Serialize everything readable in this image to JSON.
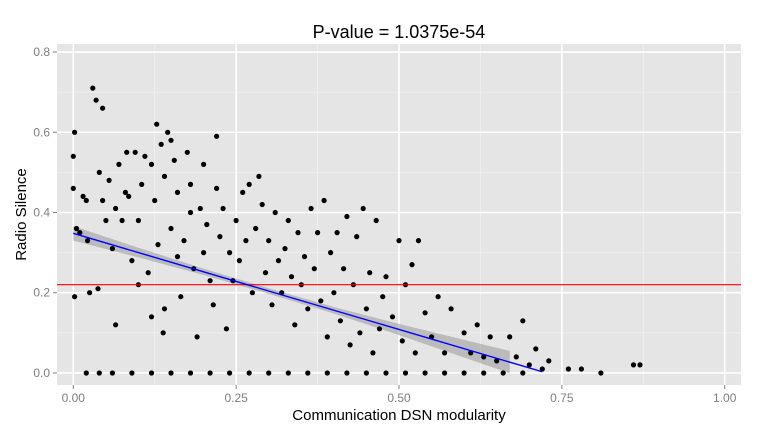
{
  "chart_data": {
    "type": "scatter",
    "title": "P-value = 1.0375e-54",
    "xlabel": "Communication DSN modularity",
    "ylabel": "Radio Silence",
    "xlim": [
      -0.025,
      1.025
    ],
    "ylim": [
      -0.03,
      0.82
    ],
    "x_ticks": [
      0.0,
      0.25,
      0.5,
      0.75,
      1.0
    ],
    "x_tick_labels": [
      "0.00",
      "0.25",
      "0.50",
      "0.75",
      "1.00"
    ],
    "y_ticks": [
      0.0,
      0.2,
      0.4,
      0.6,
      0.8
    ],
    "y_tick_labels": [
      "0.0",
      "0.2",
      "0.4",
      "0.6",
      "0.8"
    ],
    "grid": true,
    "colors": {
      "panel_background": "#e5e5e5",
      "grid_major": "#ffffff",
      "grid_minor": "#f2f2f2",
      "points": "#000000",
      "regression_line": "#0000ff",
      "confidence_band": "#999999",
      "reference_line": "#ff0000"
    },
    "reference_hline": {
      "y": 0.22
    },
    "regression": {
      "x": [
        0.0,
        0.72
      ],
      "y": [
        0.348,
        0.003
      ],
      "band_x": [
        0.0,
        0.1,
        0.2,
        0.3,
        0.4,
        0.5,
        0.6,
        0.67
      ],
      "band_half_width": [
        0.018,
        0.012,
        0.008,
        0.007,
        0.008,
        0.014,
        0.022,
        0.028
      ]
    },
    "series": [
      {
        "points": [
          [
            0.0,
            0.54
          ],
          [
            0.0,
            0.46
          ],
          [
            0.002,
            0.6
          ],
          [
            0.002,
            0.19
          ],
          [
            0.005,
            0.36
          ],
          [
            0.01,
            0.35
          ],
          [
            0.015,
            0.44
          ],
          [
            0.02,
            0.43
          ],
          [
            0.022,
            0.33
          ],
          [
            0.025,
            0.2
          ],
          [
            0.03,
            0.71
          ],
          [
            0.035,
            0.68
          ],
          [
            0.038,
            0.21
          ],
          [
            0.04,
            0.5
          ],
          [
            0.045,
            0.66
          ],
          [
            0.045,
            0.43
          ],
          [
            0.05,
            0.38
          ],
          [
            0.055,
            0.48
          ],
          [
            0.06,
            0.31
          ],
          [
            0.065,
            0.12
          ],
          [
            0.065,
            0.41
          ],
          [
            0.07,
            0.52
          ],
          [
            0.075,
            0.38
          ],
          [
            0.08,
            0.45
          ],
          [
            0.082,
            0.55
          ],
          [
            0.085,
            0.44
          ],
          [
            0.09,
            0.28
          ],
          [
            0.095,
            0.55
          ],
          [
            0.1,
            0.38
          ],
          [
            0.1,
            0.22
          ],
          [
            0.105,
            0.47
          ],
          [
            0.11,
            0.54
          ],
          [
            0.115,
            0.25
          ],
          [
            0.12,
            0.52
          ],
          [
            0.12,
            0.14
          ],
          [
            0.125,
            0.43
          ],
          [
            0.128,
            0.62
          ],
          [
            0.13,
            0.32
          ],
          [
            0.135,
            0.57
          ],
          [
            0.138,
            0.1
          ],
          [
            0.14,
            0.49
          ],
          [
            0.14,
            0.16
          ],
          [
            0.145,
            0.6
          ],
          [
            0.15,
            0.58
          ],
          [
            0.15,
            0.36
          ],
          [
            0.155,
            0.53
          ],
          [
            0.16,
            0.29
          ],
          [
            0.16,
            0.45
          ],
          [
            0.165,
            0.19
          ],
          [
            0.17,
            0.33
          ],
          [
            0.175,
            0.55
          ],
          [
            0.18,
            0.4
          ],
          [
            0.18,
            0.47
          ],
          [
            0.185,
            0.26
          ],
          [
            0.19,
            0.09
          ],
          [
            0.195,
            0.41
          ],
          [
            0.2,
            0.52
          ],
          [
            0.2,
            0.3
          ],
          [
            0.205,
            0.37
          ],
          [
            0.21,
            0.23
          ],
          [
            0.215,
            0.17
          ],
          [
            0.22,
            0.59
          ],
          [
            0.22,
            0.46
          ],
          [
            0.225,
            0.34
          ],
          [
            0.23,
            0.41
          ],
          [
            0.235,
            0.11
          ],
          [
            0.24,
            0.3
          ],
          [
            0.245,
            0.23
          ],
          [
            0.25,
            0.38
          ],
          [
            0.255,
            0.28
          ],
          [
            0.26,
            0.45
          ],
          [
            0.265,
            0.33
          ],
          [
            0.27,
            0.47
          ],
          [
            0.275,
            0.2
          ],
          [
            0.28,
            0.36
          ],
          [
            0.285,
            0.49
          ],
          [
            0.29,
            0.42
          ],
          [
            0.295,
            0.25
          ],
          [
            0.3,
            0.33
          ],
          [
            0.305,
            0.17
          ],
          [
            0.31,
            0.4
          ],
          [
            0.315,
            0.28
          ],
          [
            0.32,
            0.2
          ],
          [
            0.325,
            0.31
          ],
          [
            0.33,
            0.38
          ],
          [
            0.335,
            0.24
          ],
          [
            0.34,
            0.12
          ],
          [
            0.345,
            0.35
          ],
          [
            0.35,
            0.22
          ],
          [
            0.355,
            0.29
          ],
          [
            0.36,
            0.16
          ],
          [
            0.365,
            0.41
          ],
          [
            0.37,
            0.26
          ],
          [
            0.375,
            0.35
          ],
          [
            0.38,
            0.18
          ],
          [
            0.385,
            0.43
          ],
          [
            0.39,
            0.09
          ],
          [
            0.395,
            0.3
          ],
          [
            0.4,
            0.2
          ],
          [
            0.405,
            0.35
          ],
          [
            0.41,
            0.13
          ],
          [
            0.415,
            0.26
          ],
          [
            0.42,
            0.39
          ],
          [
            0.425,
            0.07
          ],
          [
            0.43,
            0.22
          ],
          [
            0.435,
            0.34
          ],
          [
            0.44,
            0.1
          ],
          [
            0.445,
            0.41
          ],
          [
            0.45,
            0.16
          ],
          [
            0.455,
            0.25
          ],
          [
            0.46,
            0.05
          ],
          [
            0.465,
            0.38
          ],
          [
            0.47,
            0.11
          ],
          [
            0.475,
            0.19
          ],
          [
            0.48,
            0.24
          ],
          [
            0.49,
            0.14
          ],
          [
            0.5,
            0.33
          ],
          [
            0.505,
            0.08
          ],
          [
            0.51,
            0.22
          ],
          [
            0.52,
            0.27
          ],
          [
            0.525,
            0.05
          ],
          [
            0.53,
            0.33
          ],
          [
            0.54,
            0.15
          ],
          [
            0.55,
            0.09
          ],
          [
            0.56,
            0.19
          ],
          [
            0.57,
            0.05
          ],
          [
            0.58,
            0.16
          ],
          [
            0.6,
            0.1
          ],
          [
            0.61,
            0.05
          ],
          [
            0.62,
            0.12
          ],
          [
            0.63,
            0.04
          ],
          [
            0.64,
            0.09
          ],
          [
            0.65,
            0.03
          ],
          [
            0.67,
            0.09
          ],
          [
            0.68,
            0.04
          ],
          [
            0.69,
            0.13
          ],
          [
            0.7,
            0.02
          ],
          [
            0.71,
            0.06
          ],
          [
            0.72,
            0.01
          ],
          [
            0.73,
            0.03
          ],
          [
            0.76,
            0.01
          ],
          [
            0.78,
            0.01
          ],
          [
            0.81,
            0.0
          ],
          [
            0.86,
            0.02
          ],
          [
            0.87,
            0.02
          ],
          [
            0.02,
            0.0
          ],
          [
            0.04,
            0.0
          ],
          [
            0.06,
            0.0
          ],
          [
            0.09,
            0.0
          ],
          [
            0.12,
            0.0
          ],
          [
            0.15,
            0.0
          ],
          [
            0.18,
            0.0
          ],
          [
            0.21,
            0.0
          ],
          [
            0.24,
            0.0
          ],
          [
            0.27,
            0.0
          ],
          [
            0.3,
            0.0
          ],
          [
            0.33,
            0.0
          ],
          [
            0.36,
            0.0
          ],
          [
            0.39,
            0.0
          ],
          [
            0.42,
            0.0
          ],
          [
            0.45,
            0.0
          ],
          [
            0.48,
            0.0
          ],
          [
            0.51,
            0.0
          ],
          [
            0.54,
            0.0
          ],
          [
            0.57,
            0.0
          ],
          [
            0.6,
            0.0
          ],
          [
            0.63,
            0.0
          ],
          [
            0.66,
            0.0
          ],
          [
            0.69,
            0.0
          ]
        ]
      }
    ]
  }
}
